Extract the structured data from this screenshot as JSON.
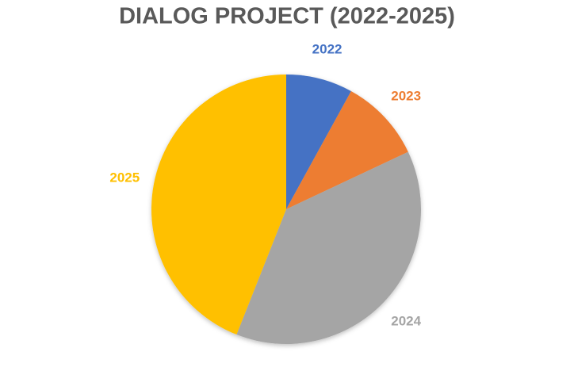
{
  "chart_data": {
    "type": "pie",
    "title": "DIALOG PROJECT (2022-2025)",
    "categories": [
      "2022",
      "2023",
      "2024",
      "2025"
    ],
    "values": [
      8,
      10,
      38,
      44
    ],
    "colors": [
      "#4472c4",
      "#ed7d31",
      "#a5a5a5",
      "#ffc000"
    ]
  }
}
